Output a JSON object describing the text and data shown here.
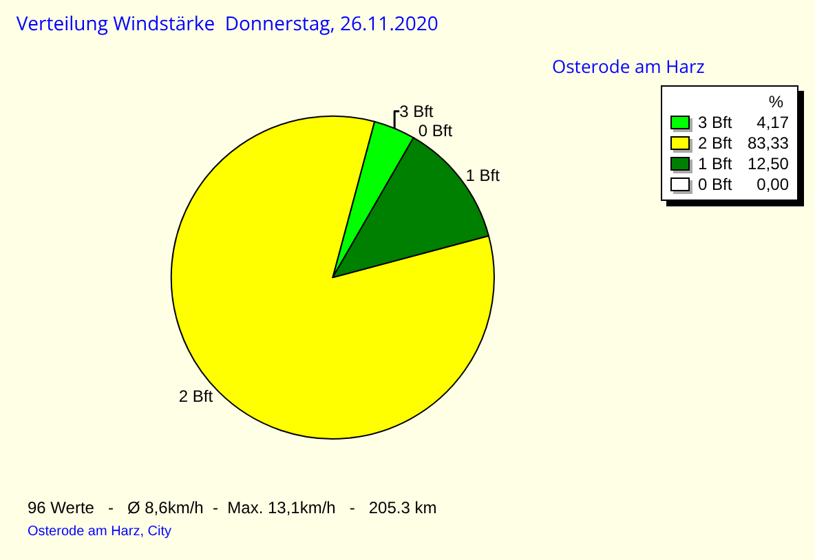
{
  "chart_data": {
    "type": "pie",
    "title": "Verteilung Windstärke  Donnerstag, 26.11.2020",
    "subtitle": "Osterode am Harz",
    "categories": [
      "3 Bft",
      "2 Bft",
      "1 Bft",
      "0 Bft"
    ],
    "values": [
      4.17,
      83.33,
      12.5,
      0
    ],
    "colors": [
      "#00ff00",
      "#ffff00",
      "#008000",
      "#ffffff"
    ],
    "value_labels": [
      "4,17",
      "83,33",
      "12,50",
      "0,00"
    ],
    "legend_title": "%",
    "legend": "top right",
    "annotations": [
      "96 Werte   -   Ø 8,6km/h  -  Max. 13,1km/h   -   205.3 km",
      "Osterode am Harz, City"
    ]
  }
}
